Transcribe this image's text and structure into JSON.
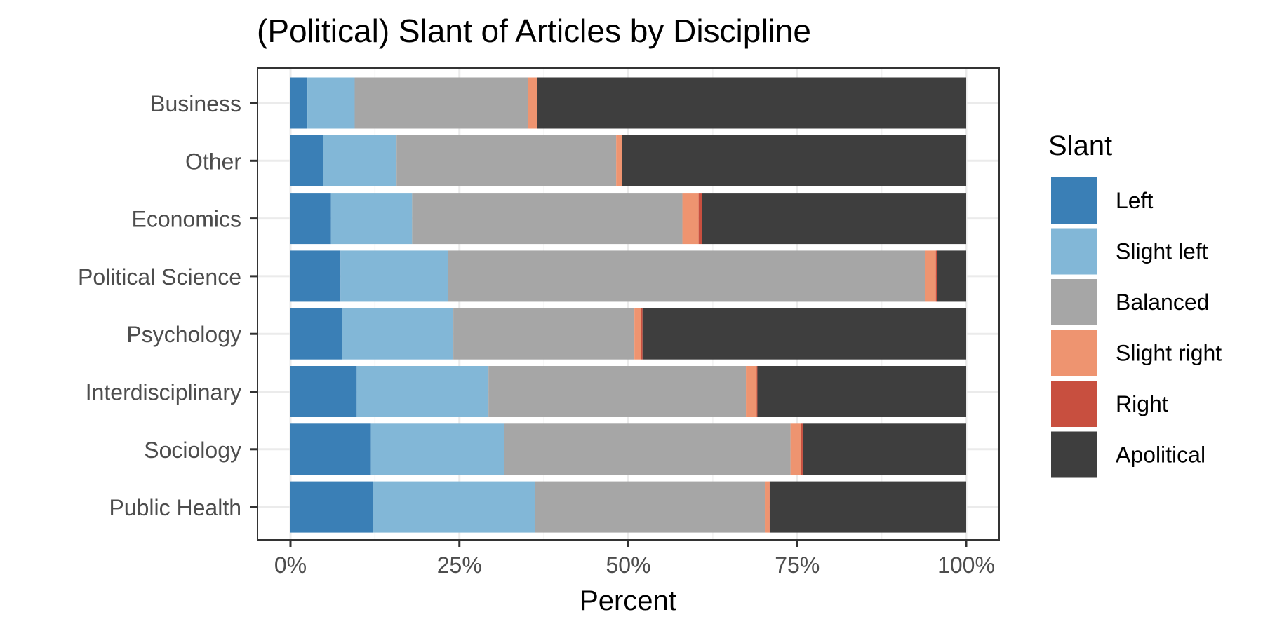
{
  "chart_data": {
    "type": "bar",
    "orientation": "horizontal",
    "stacked": true,
    "normalized": true,
    "title": "(Political) Slant of Articles by Discipline",
    "xlabel": "Percent",
    "ylabel": "",
    "xlim": [
      0,
      1
    ],
    "x_ticks": [
      0,
      0.25,
      0.5,
      0.75,
      1
    ],
    "x_tick_labels": [
      "0%",
      "25%",
      "50%",
      "75%",
      "100%"
    ],
    "categories": [
      "Business",
      "Other",
      "Economics",
      "Political Science",
      "Psychology",
      "Interdisciplinary",
      "Sociology",
      "Public Health"
    ],
    "legend": {
      "title": "Slant",
      "position": "right"
    },
    "grid": true,
    "series": [
      {
        "name": "Left",
        "color": "#3A7FB6",
        "values": [
          0.025,
          0.048,
          0.06,
          0.074,
          0.076,
          0.098,
          0.119,
          0.122
        ]
      },
      {
        "name": "Slight left",
        "color": "#82B7D7",
        "values": [
          0.07,
          0.109,
          0.12,
          0.159,
          0.165,
          0.195,
          0.197,
          0.24
        ]
      },
      {
        "name": "Balanced",
        "color": "#A6A6A6",
        "values": [
          0.256,
          0.325,
          0.4,
          0.706,
          0.268,
          0.381,
          0.424,
          0.34
        ]
      },
      {
        "name": "Slight right",
        "color": "#EE9470",
        "values": [
          0.014,
          0.009,
          0.024,
          0.016,
          0.01,
          0.016,
          0.015,
          0.007
        ]
      },
      {
        "name": "Right",
        "color": "#C84F3F",
        "values": [
          0.0,
          0.0,
          0.005,
          0.002,
          0.002,
          0.001,
          0.003,
          0.001
        ]
      },
      {
        "name": "Apolitical",
        "color": "#3E3E3E",
        "values": [
          0.635,
          0.509,
          0.391,
          0.043,
          0.479,
          0.309,
          0.242,
          0.29
        ]
      }
    ]
  }
}
